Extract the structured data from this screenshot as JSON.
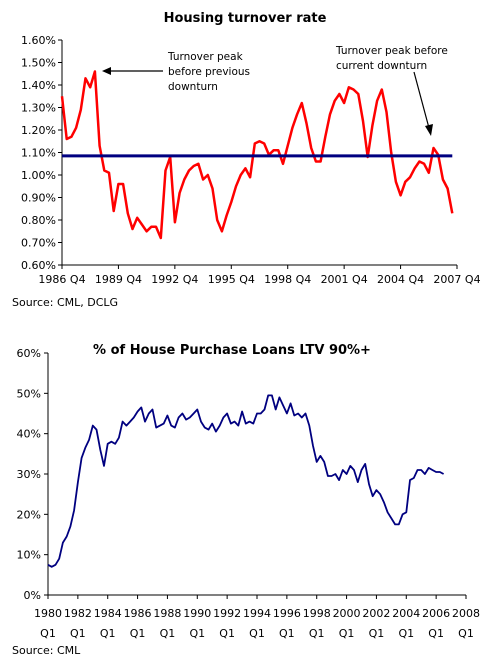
{
  "chart_data": [
    {
      "type": "line",
      "title": "Housing turnover rate",
      "source": "Source: CML, DCLG",
      "ylim": [
        0.006,
        0.016
      ],
      "y_ticks": [
        "0.60%",
        "0.70%",
        "0.80%",
        "0.90%",
        "1.00%",
        "1.10%",
        "1.20%",
        "1.30%",
        "1.40%",
        "1.50%",
        "1.60%"
      ],
      "x_ticks": [
        "1986 Q4",
        "1989 Q4",
        "1992 Q4",
        "1995 Q4",
        "1998 Q4",
        "2001 Q4",
        "2004 Q4",
        "2007 Q4"
      ],
      "x_range": [
        1986.75,
        2007.75
      ],
      "series": [
        {
          "color": "#ff0000",
          "x": [
            1986.75,
            1987.0,
            1987.25,
            1987.5,
            1987.75,
            1988.0,
            1988.25,
            1988.5,
            1988.75,
            1989.0,
            1989.25,
            1989.5,
            1989.75,
            1990.0,
            1990.25,
            1990.5,
            1990.75,
            1991.0,
            1991.25,
            1991.5,
            1991.75,
            1992.0,
            1992.25,
            1992.5,
            1992.75,
            1993.0,
            1993.25,
            1993.5,
            1993.75,
            1994.0,
            1994.25,
            1994.5,
            1994.75,
            1995.0,
            1995.25,
            1995.5,
            1995.75,
            1996.0,
            1996.25,
            1996.5,
            1996.75,
            1997.0,
            1997.25,
            1997.5,
            1997.75,
            1998.0,
            1998.25,
            1998.5,
            1998.75,
            1999.0,
            1999.25,
            1999.5,
            1999.75,
            2000.0,
            2000.25,
            2000.5,
            2000.75,
            2001.0,
            2001.25,
            2001.5,
            2001.75,
            2002.0,
            2002.25,
            2002.5,
            2002.75,
            2003.0,
            2003.25,
            2003.5,
            2003.75,
            2004.0,
            2004.25,
            2004.5,
            2004.75,
            2005.0,
            2005.25,
            2005.5,
            2005.75,
            2006.0,
            2006.25,
            2006.5,
            2006.75,
            2007.0,
            2007.25,
            2007.5
          ],
          "values": [
            0.0135,
            0.0116,
            0.0117,
            0.0121,
            0.0129,
            0.0143,
            0.0139,
            0.0146,
            0.0113,
            0.0102,
            0.0101,
            0.0084,
            0.0096,
            0.0096,
            0.0083,
            0.0076,
            0.0081,
            0.0078,
            0.0075,
            0.0077,
            0.0077,
            0.0072,
            0.0102,
            0.0108,
            0.0079,
            0.0092,
            0.0098,
            0.0102,
            0.0104,
            0.0105,
            0.0098,
            0.01,
            0.0094,
            0.008,
            0.0075,
            0.0082,
            0.0088,
            0.0095,
            0.01,
            0.0103,
            0.0099,
            0.0114,
            0.0115,
            0.0114,
            0.0109,
            0.0111,
            0.0111,
            0.0105,
            0.0113,
            0.0121,
            0.0127,
            0.0132,
            0.0123,
            0.0112,
            0.0106,
            0.0106,
            0.0117,
            0.0127,
            0.0133,
            0.0136,
            0.0132,
            0.0139,
            0.0138,
            0.0136,
            0.0124,
            0.0108,
            0.0122,
            0.0133,
            0.0138,
            0.0128,
            0.011,
            0.0097,
            0.0091,
            0.0097,
            0.0099,
            0.0103,
            0.0106,
            0.0105,
            0.0101,
            0.0112,
            0.0109,
            0.0098,
            0.0094,
            0.0083
          ]
        },
        {
          "color": "#000080",
          "x": [
            1986.75,
            2007.5
          ],
          "values": [
            0.01085,
            0.01085
          ]
        }
      ],
      "annotations": [
        {
          "lines": [
            "Turnover peak",
            "before previous",
            "downturn"
          ]
        },
        {
          "lines": [
            "Turnover peak before",
            "current downturn"
          ]
        }
      ]
    },
    {
      "type": "line",
      "title": "% of House Purchase Loans LTV 90%+",
      "source": "Source: CML",
      "ylim": [
        0,
        60
      ],
      "y_ticks": [
        "0%",
        "10%",
        "20%",
        "30%",
        "40%",
        "50%",
        "60%"
      ],
      "x_ticks": [
        {
          "year": "1980",
          "q": "Q1"
        },
        {
          "year": "1982",
          "q": "Q1"
        },
        {
          "year": "1984",
          "q": "Q1"
        },
        {
          "year": "1986",
          "q": "Q1"
        },
        {
          "year": "1988",
          "q": "Q1"
        },
        {
          "year": "1990",
          "q": "Q1"
        },
        {
          "year": "1992",
          "q": "Q1"
        },
        {
          "year": "1994",
          "q": "Q1"
        },
        {
          "year": "1996",
          "q": "Q1"
        },
        {
          "year": "1998",
          "q": "Q1"
        },
        {
          "year": "2000",
          "q": "Q1"
        },
        {
          "year": "2002",
          "q": "Q1"
        },
        {
          "year": "2004",
          "q": "Q1"
        },
        {
          "year": "2006",
          "q": "Q1"
        },
        {
          "year": "2008",
          "q": "Q1"
        }
      ],
      "x_range": [
        1980.0,
        2008.0
      ],
      "series": [
        {
          "color": "#000080",
          "points": [
            [
              1980.0,
              7.5
            ],
            [
              1980.25,
              7
            ],
            [
              1980.5,
              7.5
            ],
            [
              1980.75,
              9
            ],
            [
              1981.0,
              13
            ],
            [
              1981.25,
              14.5
            ],
            [
              1981.5,
              17
            ],
            [
              1981.75,
              21
            ],
            [
              1982.0,
              28
            ],
            [
              1982.25,
              34
            ],
            [
              1982.5,
              36.5
            ],
            [
              1982.75,
              38.5
            ],
            [
              1983.0,
              42
            ],
            [
              1983.25,
              41
            ],
            [
              1983.5,
              36
            ],
            [
              1983.75,
              32
            ],
            [
              1984.0,
              37.5
            ],
            [
              1984.25,
              38
            ],
            [
              1984.5,
              37.5
            ],
            [
              1984.75,
              39
            ],
            [
              1985.0,
              43
            ],
            [
              1985.25,
              42
            ],
            [
              1985.5,
              43
            ],
            [
              1985.75,
              44
            ],
            [
              1986.0,
              45.5
            ],
            [
              1986.25,
              46.5
            ],
            [
              1986.5,
              43
            ],
            [
              1986.75,
              45
            ],
            [
              1987.0,
              46
            ],
            [
              1987.25,
              41.5
            ],
            [
              1987.5,
              42
            ],
            [
              1987.75,
              42.5
            ],
            [
              1988.0,
              44.5
            ],
            [
              1988.25,
              42
            ],
            [
              1988.5,
              41.5
            ],
            [
              1988.75,
              44
            ],
            [
              1989.0,
              45
            ],
            [
              1989.25,
              43.5
            ],
            [
              1989.5,
              44
            ],
            [
              1989.75,
              45
            ],
            [
              1990.0,
              46
            ],
            [
              1990.25,
              43
            ],
            [
              1990.5,
              41.5
            ],
            [
              1990.75,
              41
            ],
            [
              1991.0,
              42.5
            ],
            [
              1991.25,
              40.5
            ],
            [
              1991.5,
              42
            ],
            [
              1991.75,
              44
            ],
            [
              1992.0,
              45
            ],
            [
              1992.25,
              42.5
            ],
            [
              1992.5,
              43
            ],
            [
              1992.75,
              42
            ],
            [
              1993.0,
              45.5
            ],
            [
              1993.25,
              42.5
            ],
            [
              1993.5,
              43
            ],
            [
              1993.75,
              42.5
            ],
            [
              1994.0,
              45
            ],
            [
              1994.25,
              45
            ],
            [
              1994.5,
              46
            ],
            [
              1994.75,
              49.5
            ],
            [
              1995.0,
              49.5
            ],
            [
              1995.25,
              46
            ],
            [
              1995.5,
              49
            ],
            [
              1995.75,
              47
            ],
            [
              1996.0,
              45
            ],
            [
              1996.25,
              47.5
            ],
            [
              1996.5,
              44.5
            ],
            [
              1996.75,
              45
            ],
            [
              1997.0,
              44
            ],
            [
              1997.25,
              45
            ],
            [
              1997.5,
              42
            ],
            [
              1997.75,
              37
            ],
            [
              1998.0,
              33
            ],
            [
              1998.25,
              34.5
            ],
            [
              1998.5,
              33
            ],
            [
              1998.75,
              29.5
            ],
            [
              1999.0,
              29.5
            ],
            [
              1999.25,
              30
            ],
            [
              1999.5,
              28.5
            ],
            [
              1999.75,
              31
            ],
            [
              2000.0,
              30
            ],
            [
              2000.25,
              32
            ],
            [
              2000.5,
              31
            ],
            [
              2000.75,
              28
            ],
            [
              2001.0,
              31
            ],
            [
              2001.25,
              32.5
            ],
            [
              2001.5,
              27.5
            ],
            [
              2001.75,
              24.5
            ],
            [
              2002.0,
              26
            ],
            [
              2002.25,
              25
            ],
            [
              2002.5,
              23
            ],
            [
              2002.75,
              20.5
            ],
            [
              2003.0,
              19
            ],
            [
              2003.25,
              17.5
            ],
            [
              2003.5,
              17.5
            ],
            [
              2003.75,
              20
            ],
            [
              2004.0,
              20.5
            ],
            [
              2004.25,
              28.5
            ],
            [
              2004.5,
              29
            ],
            [
              2004.75,
              31
            ],
            [
              2005.0,
              31
            ],
            [
              2005.25,
              30
            ],
            [
              2005.5,
              31.5
            ],
            [
              2005.75,
              31
            ],
            [
              2006.0,
              30.5
            ],
            [
              2006.25,
              30.5
            ],
            [
              2006.5,
              30
            ]
          ]
        }
      ]
    }
  ]
}
